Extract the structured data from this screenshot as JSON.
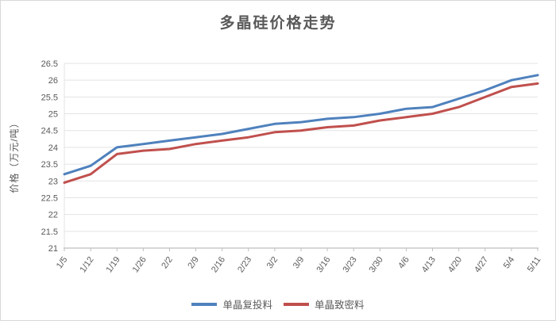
{
  "chart_data": {
    "type": "line",
    "title": "多晶硅价格走势",
    "xlabel": "",
    "ylabel": "价格（万元/吨）",
    "categories": [
      "1/5",
      "1/12",
      "1/19",
      "1/26",
      "2/2",
      "2/9",
      "2/16",
      "2/23",
      "3/2",
      "3/9",
      "3/16",
      "3/23",
      "3/30",
      "4/6",
      "4/13",
      "4/20",
      "4/27",
      "5/4",
      "5/11"
    ],
    "series": [
      {
        "name": "单晶复投料",
        "color": "#4F81BD",
        "values": [
          23.2,
          23.45,
          24.0,
          24.1,
          24.2,
          24.3,
          24.4,
          24.55,
          24.7,
          24.75,
          24.85,
          24.9,
          25.0,
          25.15,
          25.2,
          25.45,
          25.7,
          26.0,
          26.15
        ]
      },
      {
        "name": "单晶致密料",
        "color": "#C0504D",
        "values": [
          22.95,
          23.2,
          23.8,
          23.9,
          23.95,
          24.1,
          24.2,
          24.3,
          24.45,
          24.5,
          24.6,
          24.65,
          24.8,
          24.9,
          25.0,
          25.2,
          25.5,
          25.8,
          25.9
        ]
      }
    ],
    "ylim": [
      21,
      26.5
    ],
    "ytick_step": 0.5,
    "grid": true,
    "legend_position": "bottom",
    "colors": {
      "grid": "#e3e3e3",
      "axis": "#bfbfbf",
      "text": "#595959"
    }
  }
}
